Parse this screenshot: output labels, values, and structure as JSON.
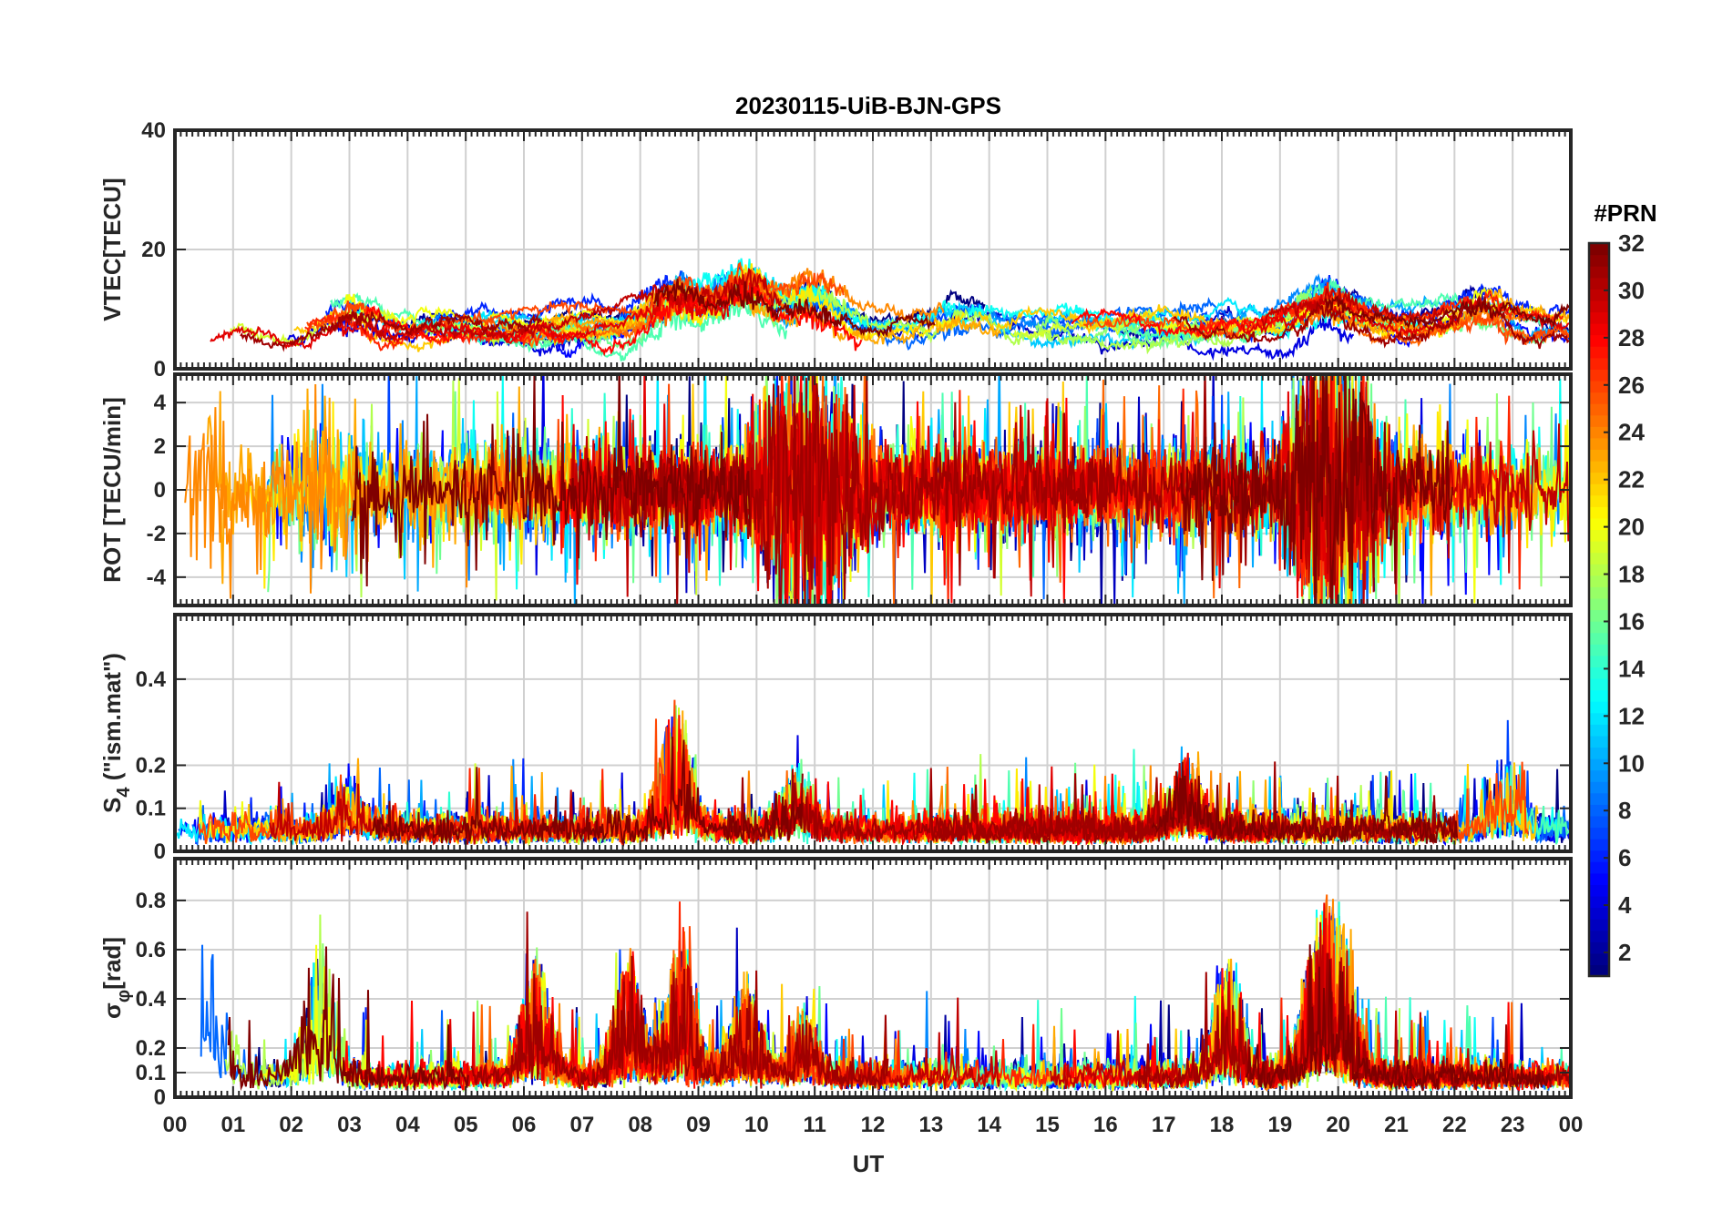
{
  "chart_data": {
    "type": "line",
    "title": "20230115-UiB-BJN-GPS",
    "xlabel": "UT",
    "x_ticks": [
      "00",
      "01",
      "02",
      "03",
      "04",
      "05",
      "06",
      "07",
      "08",
      "09",
      "10",
      "11",
      "12",
      "13",
      "14",
      "15",
      "16",
      "17",
      "18",
      "19",
      "20",
      "21",
      "22",
      "23",
      "00"
    ],
    "xlim_hours": [
      0,
      24
    ],
    "grid": true,
    "colorbar": {
      "title": "#PRN",
      "range": [
        1,
        32
      ],
      "ticks": [
        "2",
        "4",
        "6",
        "8",
        "10",
        "12",
        "14",
        "16",
        "18",
        "20",
        "22",
        "24",
        "26",
        "28",
        "30",
        "32"
      ],
      "colormap": "jet"
    },
    "panels": [
      {
        "name": "vtec",
        "ylabel": "VTEC[TECU]",
        "ylim": [
          0,
          40
        ],
        "yticks": [
          0,
          20,
          40
        ],
        "ytick_labels": [
          "0",
          "20",
          "40"
        ],
        "baseline": 7,
        "noise": 2.5,
        "spike_prob": 0.0,
        "spike_height": 0,
        "style": "walk",
        "events": [
          [
            3.0,
            6
          ],
          [
            8.6,
            12
          ],
          [
            9.8,
            14
          ],
          [
            11.0,
            10
          ],
          [
            13.5,
            5
          ],
          [
            19.8,
            8
          ],
          [
            22.5,
            6
          ]
        ]
      },
      {
        "name": "rot",
        "ylabel": "ROT [TECU/min]",
        "ylim": [
          -5.3,
          5.3
        ],
        "yticks": [
          -4,
          -2,
          0,
          2,
          4
        ],
        "ytick_labels": [
          "-4",
          "-2",
          "0",
          "2",
          "4"
        ],
        "baseline": 0,
        "noise": 0.9,
        "spike_prob": 0.06,
        "spike_height": 4.5,
        "style": "symmetric",
        "events": [
          [
            0.5,
            1.0
          ],
          [
            2.5,
            1.0
          ],
          [
            10.5,
            1.6
          ],
          [
            11.2,
            1.8
          ],
          [
            19.6,
            1.8
          ],
          [
            20.2,
            1.5
          ]
        ]
      },
      {
        "name": "s4",
        "ylabel": "S4 (\"ism.mat\")",
        "ylabel_main": "S",
        "ylabel_sub": "4",
        "ylabel_rest": " (\"ism.mat\")",
        "ylim": [
          0,
          0.55
        ],
        "yticks": [
          0,
          0.1,
          0.2,
          0.4
        ],
        "ytick_labels": [
          "0",
          "0.1",
          "0.2",
          "0.4"
        ],
        "baseline": 0.03,
        "noise": 0.025,
        "spike_prob": 0.02,
        "spike_height": 0.14,
        "style": "positive",
        "events": [
          [
            3.0,
            0.12
          ],
          [
            8.6,
            0.3
          ],
          [
            10.7,
            0.15
          ],
          [
            17.4,
            0.16
          ],
          [
            22.9,
            0.18
          ]
        ]
      },
      {
        "name": "sigma_phi",
        "ylabel": "σφ[rad]",
        "ylabel_main": "σ",
        "ylabel_sub": "φ",
        "ylabel_rest": "[rad]",
        "ylim": [
          0,
          0.97
        ],
        "yticks": [
          0,
          0.1,
          0.2,
          0.4,
          0.6,
          0.8
        ],
        "ytick_labels": [
          "0",
          "0.1",
          "0.2",
          "0.4",
          "0.6",
          "0.8"
        ],
        "baseline": 0.05,
        "noise": 0.04,
        "spike_prob": 0.02,
        "spike_height": 0.3,
        "style": "positive",
        "events": [
          [
            0.6,
            0.6
          ],
          [
            2.5,
            0.6
          ],
          [
            6.2,
            0.5
          ],
          [
            7.8,
            0.5
          ],
          [
            8.7,
            0.6
          ],
          [
            9.8,
            0.4
          ],
          [
            10.8,
            0.3
          ],
          [
            18.1,
            0.5
          ],
          [
            19.6,
            0.5
          ],
          [
            20.0,
            0.6
          ]
        ]
      }
    ]
  }
}
